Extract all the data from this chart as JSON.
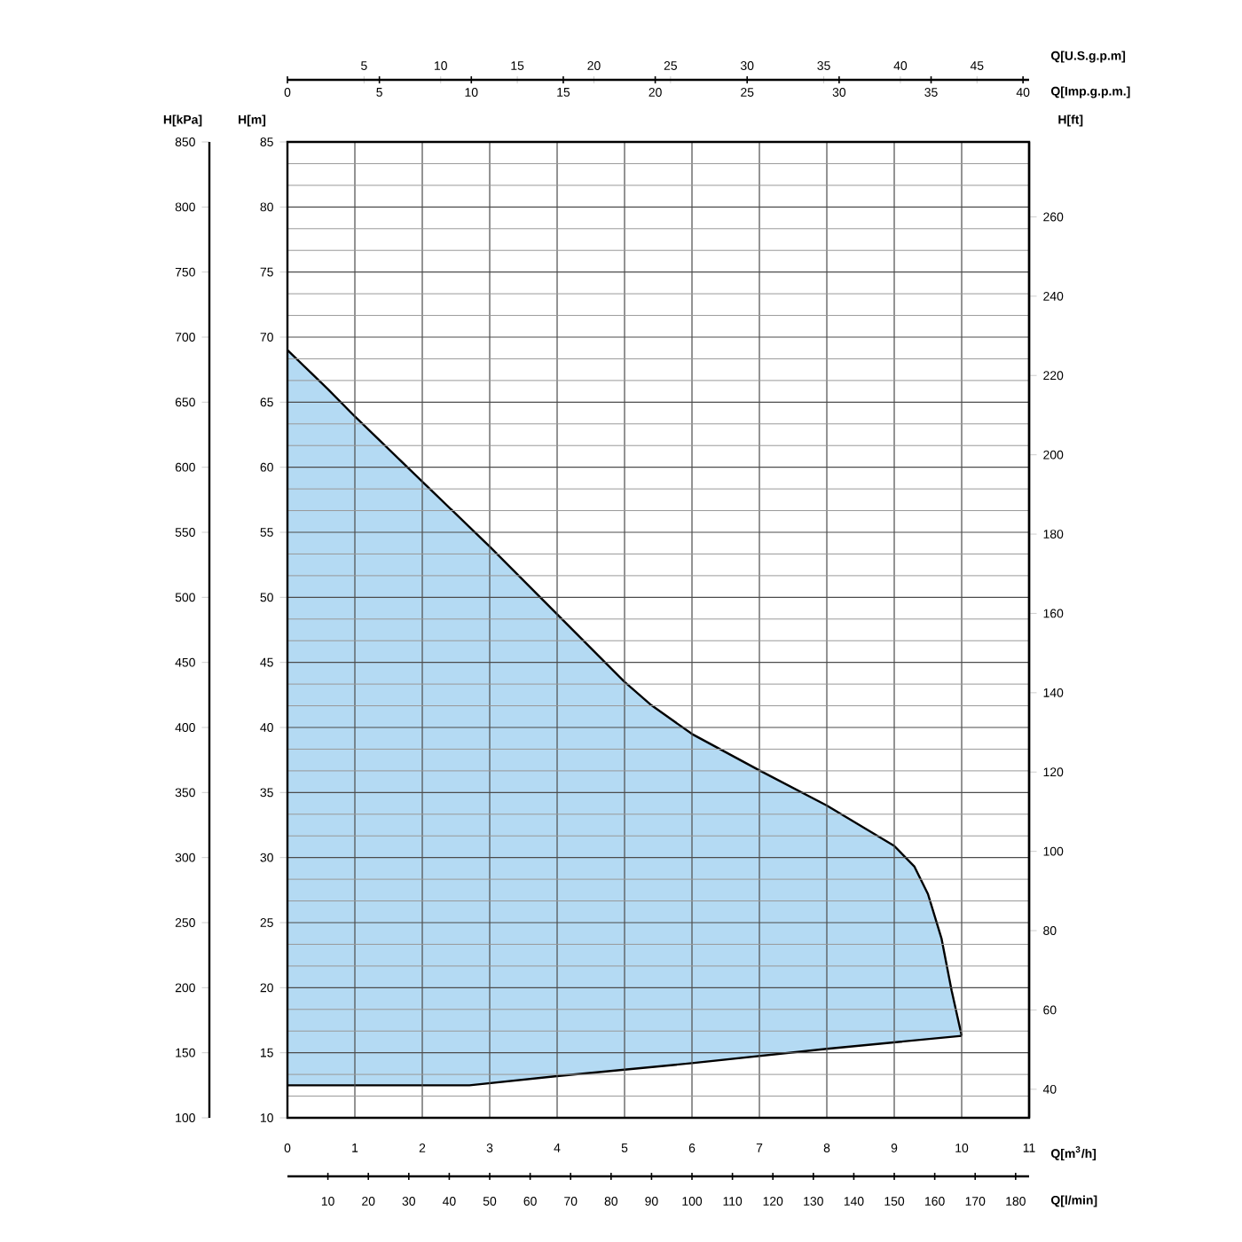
{
  "chart_data": {
    "type": "area",
    "xlabel": "Q[m$^{3}$/h]",
    "ylabel": "H[m]",
    "y2label": "H[kPa]",
    "y3label": "H[ft]",
    "x2label": "Q[U.S.g.p.m]",
    "annotations": [
      "Q[Imp.g.p.m.]",
      "Q[l/min]",
      "0",
      "5",
      "10",
      "15",
      "20",
      "25",
      "30",
      "35",
      "40",
      "10",
      "20",
      "30",
      "40",
      "50",
      "60",
      "70",
      "80",
      "90",
      "100",
      "110",
      "120",
      "130",
      "140",
      "150",
      "160",
      "170",
      "180"
    ],
    "xlim": [
      0,
      11
    ],
    "xticks": [
      0,
      1,
      2,
      3,
      4,
      5,
      6,
      7,
      8,
      9,
      10,
      11
    ],
    "ylim": [
      10,
      85
    ],
    "yticks": [
      10,
      15,
      20,
      25,
      30,
      35,
      40,
      45,
      50,
      55,
      60,
      65,
      70,
      75,
      80,
      85
    ],
    "y2lim": [
      100,
      850
    ],
    "y2ticks": [
      100,
      150,
      200,
      250,
      300,
      350,
      400,
      450,
      500,
      550,
      600,
      650,
      700,
      750,
      800,
      850
    ],
    "y3lim": [
      32.8,
      278.9
    ],
    "y3ticks": [
      40,
      60,
      80,
      100,
      120,
      140,
      160,
      180,
      200,
      220,
      240,
      260
    ],
    "x2lim": [
      0,
      48.4
    ],
    "x2ticks": [
      5,
      10,
      15,
      20,
      25,
      30,
      35,
      40,
      45
    ],
    "grid": true,
    "series": [
      {
        "color": "#b4daf3",
        "x": [
          0,
          0.6,
          1,
          2,
          2.7,
          3,
          4,
          5,
          5.4,
          6,
          7,
          8,
          9,
          9.3,
          9.5,
          9.7,
          9.85,
          10
        ],
        "values": [
          69.0,
          66.0,
          63.9,
          58.9,
          55.4,
          53.9,
          48.7,
          43.5,
          41.7,
          39.5,
          36.7,
          34.0,
          30.9,
          29.3,
          27.2,
          23.8,
          19.8,
          16.3
        ]
      },
      {
        "color": "#ffffff",
        "x": [
          0,
          2.7,
          4,
          6,
          8,
          10
        ],
        "values": [
          12.5,
          12.5,
          13.2,
          14.2,
          15.3,
          16.3
        ]
      }
    ]
  }
}
